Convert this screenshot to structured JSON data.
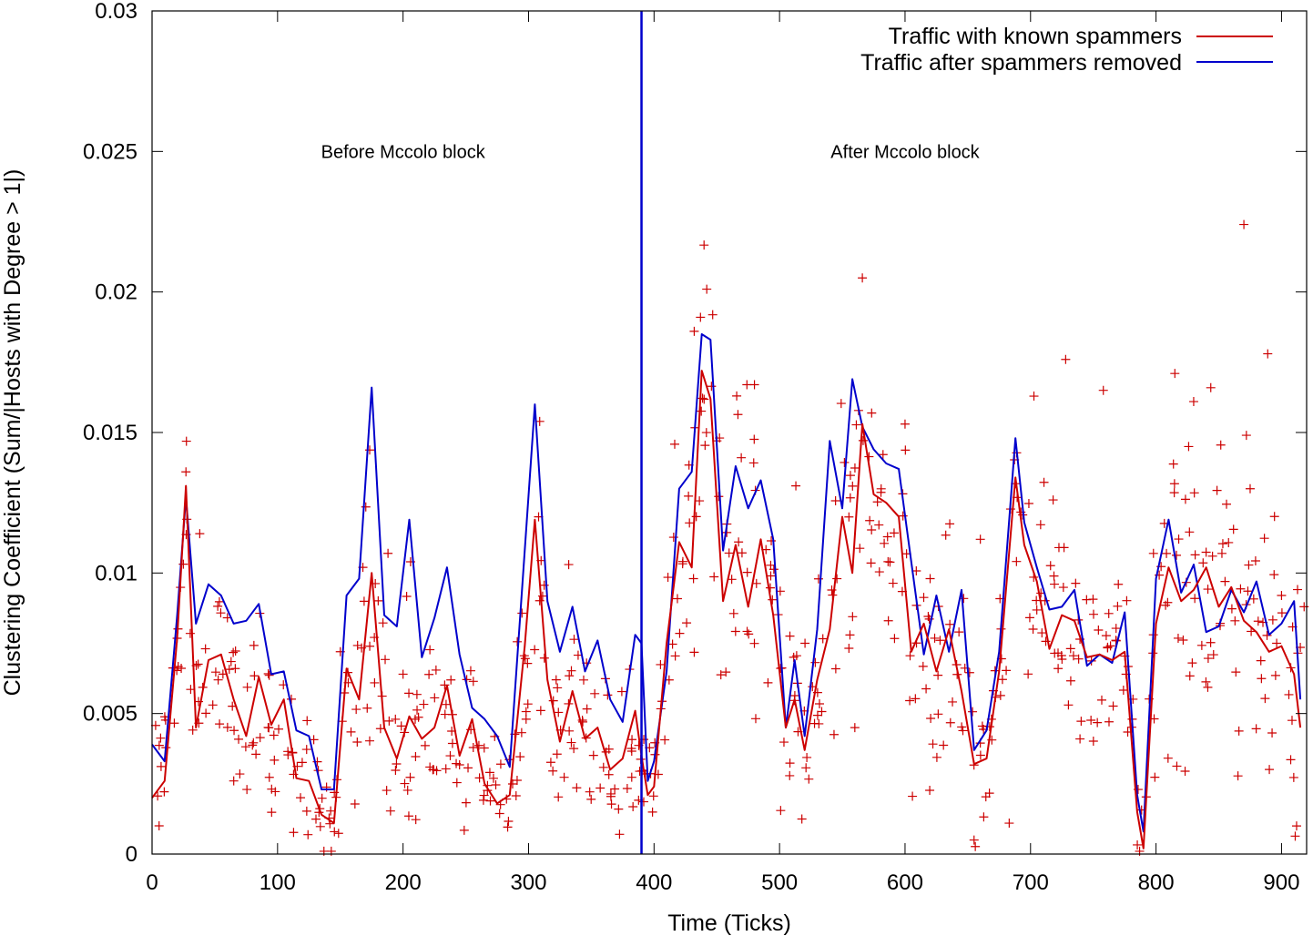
{
  "chart_data": {
    "type": "line",
    "title": "",
    "xlabel": "Time (Ticks)",
    "ylabel": "Clustering Coefficient (Sum/|Hosts with Degree > 1|)",
    "xlim": [
      0,
      920
    ],
    "ylim": [
      0,
      0.03
    ],
    "xticks": [
      0,
      100,
      200,
      300,
      400,
      500,
      600,
      700,
      800,
      900
    ],
    "yticks": [
      0,
      0.005,
      0.01,
      0.015,
      0.02,
      0.025,
      0.03
    ],
    "xtick_labels": [
      "0",
      "100",
      "200",
      "300",
      "400",
      "500",
      "600",
      "700",
      "800",
      "900"
    ],
    "ytick_labels": [
      "0",
      "0.005",
      "0.01",
      "0.015",
      "0.02",
      "0.025",
      "0.03"
    ],
    "legend_position": "top-right",
    "series": [
      {
        "name": "Traffic with known spammers",
        "color": "#cc0000",
        "x": [
          0,
          10,
          20,
          27,
          35,
          45,
          55,
          65,
          75,
          85,
          95,
          105,
          115,
          125,
          135,
          145,
          155,
          165,
          175,
          185,
          195,
          205,
          215,
          225,
          235,
          245,
          255,
          265,
          275,
          285,
          297,
          305,
          315,
          325,
          335,
          345,
          355,
          365,
          375,
          385,
          390,
          395,
          400,
          410,
          420,
          430,
          438,
          445,
          455,
          465,
          475,
          485,
          495,
          505,
          512,
          520,
          530,
          540,
          550,
          558,
          566,
          575,
          585,
          595,
          605,
          615,
          625,
          635,
          645,
          655,
          665,
          675,
          688,
          695,
          705,
          715,
          725,
          735,
          745,
          755,
          765,
          775,
          785,
          790,
          800,
          810,
          820,
          830,
          840,
          850,
          860,
          870,
          880,
          890,
          900,
          910,
          915
        ],
        "values": [
          0.002,
          0.0026,
          0.0077,
          0.0131,
          0.0045,
          0.0069,
          0.0071,
          0.0055,
          0.0042,
          0.0063,
          0.0046,
          0.0055,
          0.0027,
          0.0026,
          0.0014,
          0.0011,
          0.0066,
          0.0055,
          0.01,
          0.0045,
          0.0034,
          0.0049,
          0.0041,
          0.0045,
          0.006,
          0.0035,
          0.0048,
          0.0025,
          0.0018,
          0.0021,
          0.0074,
          0.0119,
          0.0062,
          0.004,
          0.0058,
          0.0041,
          0.0045,
          0.003,
          0.0034,
          0.0051,
          0.0035,
          0.0021,
          0.0024,
          0.0075,
          0.0111,
          0.0102,
          0.0172,
          0.0162,
          0.009,
          0.011,
          0.0088,
          0.0112,
          0.0085,
          0.0045,
          0.0055,
          0.0037,
          0.0062,
          0.008,
          0.012,
          0.01,
          0.0153,
          0.0128,
          0.0125,
          0.012,
          0.0072,
          0.0082,
          0.0065,
          0.008,
          0.0058,
          0.0032,
          0.0034,
          0.0065,
          0.0134,
          0.011,
          0.0097,
          0.0073,
          0.0085,
          0.0083,
          0.007,
          0.0071,
          0.0069,
          0.0072,
          0.0015,
          0.0002,
          0.0082,
          0.0102,
          0.009,
          0.0094,
          0.0102,
          0.0088,
          0.0095,
          0.0083,
          0.0079,
          0.0072,
          0.0074,
          0.0064,
          0.0045
        ]
      },
      {
        "name": "Traffic after spammers removed",
        "color": "#0000cc",
        "x": [
          0,
          10,
          20,
          27,
          35,
          45,
          55,
          65,
          75,
          85,
          95,
          105,
          115,
          125,
          135,
          145,
          155,
          165,
          175,
          185,
          195,
          205,
          215,
          225,
          235,
          245,
          255,
          265,
          275,
          285,
          297,
          305,
          315,
          325,
          335,
          345,
          355,
          365,
          375,
          385,
          390,
          395,
          400,
          410,
          420,
          430,
          438,
          445,
          455,
          465,
          475,
          485,
          495,
          505,
          512,
          520,
          530,
          540,
          550,
          558,
          566,
          575,
          585,
          595,
          605,
          615,
          625,
          635,
          645,
          655,
          665,
          675,
          688,
          695,
          705,
          715,
          725,
          735,
          745,
          755,
          765,
          775,
          785,
          790,
          800,
          810,
          820,
          830,
          840,
          850,
          860,
          870,
          880,
          890,
          900,
          910,
          915
        ],
        "values": [
          0.0039,
          0.0033,
          0.0085,
          0.0127,
          0.0082,
          0.0096,
          0.0092,
          0.0082,
          0.0083,
          0.0089,
          0.0064,
          0.0065,
          0.0044,
          0.0042,
          0.0023,
          0.0023,
          0.0092,
          0.0098,
          0.0166,
          0.0085,
          0.0081,
          0.0119,
          0.007,
          0.0084,
          0.0102,
          0.0071,
          0.0052,
          0.0048,
          0.0042,
          0.0031,
          0.0108,
          0.016,
          0.009,
          0.0072,
          0.0088,
          0.0065,
          0.0076,
          0.0055,
          0.0047,
          0.0078,
          0.0075,
          0.0026,
          0.0033,
          0.0065,
          0.013,
          0.0136,
          0.0185,
          0.0183,
          0.0108,
          0.0138,
          0.0123,
          0.0133,
          0.0112,
          0.0045,
          0.0069,
          0.0042,
          0.008,
          0.0147,
          0.0123,
          0.0169,
          0.0152,
          0.0144,
          0.0139,
          0.0137,
          0.0104,
          0.0071,
          0.0092,
          0.0072,
          0.0094,
          0.0037,
          0.0044,
          0.0072,
          0.0148,
          0.0118,
          0.0102,
          0.0087,
          0.0088,
          0.0094,
          0.0067,
          0.0071,
          0.0068,
          0.0086,
          0.0021,
          0.0008,
          0.0098,
          0.0119,
          0.0093,
          0.0103,
          0.0079,
          0.0081,
          0.0094,
          0.0086,
          0.0097,
          0.0078,
          0.0082,
          0.009,
          0.0055
        ]
      }
    ],
    "scatter_color": "#cc0000",
    "spread": [
      0.002,
      0.0025,
      0.0033,
      0.0035,
      0.003,
      0.0026,
      0.0024,
      0.0024,
      0.0024,
      0.0024,
      0.0023,
      0.0026,
      0.002,
      0.0018,
      0.0015,
      0.0013,
      0.0025,
      0.003,
      0.0035,
      0.0033,
      0.0026,
      0.0026,
      0.0025,
      0.0025,
      0.0028,
      0.0022,
      0.0022,
      0.0016,
      0.0015,
      0.0016,
      0.0035,
      0.0037,
      0.003,
      0.0024,
      0.0028,
      0.0023,
      0.0025,
      0.002,
      0.0018,
      0.0022,
      0.0015,
      0.0012,
      0.0012,
      0.0035,
      0.0045,
      0.0045,
      0.0045,
      0.0045,
      0.0045,
      0.004,
      0.004,
      0.0045,
      0.004,
      0.0028,
      0.0028,
      0.0024,
      0.0032,
      0.004,
      0.0045,
      0.0045,
      0.0045,
      0.0042,
      0.0042,
      0.004,
      0.0032,
      0.003,
      0.003,
      0.003,
      0.0028,
      0.0022,
      0.0026,
      0.003,
      0.004,
      0.004,
      0.0035,
      0.003,
      0.003,
      0.003,
      0.0028,
      0.0026,
      0.0026,
      0.003,
      0.0015,
      0.001,
      0.0035,
      0.004,
      0.004,
      0.004,
      0.004,
      0.0037,
      0.0037,
      0.0037,
      0.0035,
      0.0033,
      0.0033,
      0.0032,
      0.003
    ],
    "outliers": [
      [
        27,
        0.0136
      ],
      [
        38,
        0.0114
      ],
      [
        168,
        0.0102
      ],
      [
        188,
        0.0107
      ],
      [
        206,
        0.0104
      ],
      [
        308,
        0.012
      ],
      [
        332,
        0.0103
      ],
      [
        432,
        0.0186
      ],
      [
        437,
        0.0191
      ],
      [
        442,
        0.0201
      ],
      [
        474,
        0.0167
      ],
      [
        480,
        0.0167
      ],
      [
        513,
        0.0131
      ],
      [
        566,
        0.0205
      ],
      [
        600,
        0.0153
      ],
      [
        718,
        0.0126
      ],
      [
        728,
        0.0176
      ],
      [
        758,
        0.0165
      ],
      [
        815,
        0.0171
      ],
      [
        830,
        0.0161
      ],
      [
        870,
        0.0224
      ],
      [
        872,
        0.0149
      ],
      [
        889,
        0.0178
      ],
      [
        900,
        0.0092
      ],
      [
        918,
        0.0088
      ],
      [
        912,
        0.001
      ],
      [
        655,
        0.0005
      ],
      [
        683,
        0.0011
      ],
      [
        150,
        0.0072
      ],
      [
        200,
        0.0064
      ],
      [
        322,
        0.0062
      ],
      [
        560,
        0.0045
      ],
      [
        620,
        0.0098
      ],
      [
        660,
        0.0112
      ],
      [
        722,
        0.0066
      ],
      [
        781,
        0.0048
      ],
      [
        826,
        0.0145
      ],
      [
        855,
        0.0097
      ],
      [
        875,
        0.013
      ],
      [
        845,
        0.0106
      ]
    ],
    "marker_line": {
      "x": 390,
      "color": "#0000cc"
    },
    "annotations": [
      {
        "text": "Before Mccolo block",
        "x": 200,
        "y": 0.025
      },
      {
        "text": "After Mccolo block",
        "x": 600,
        "y": 0.025
      }
    ]
  }
}
